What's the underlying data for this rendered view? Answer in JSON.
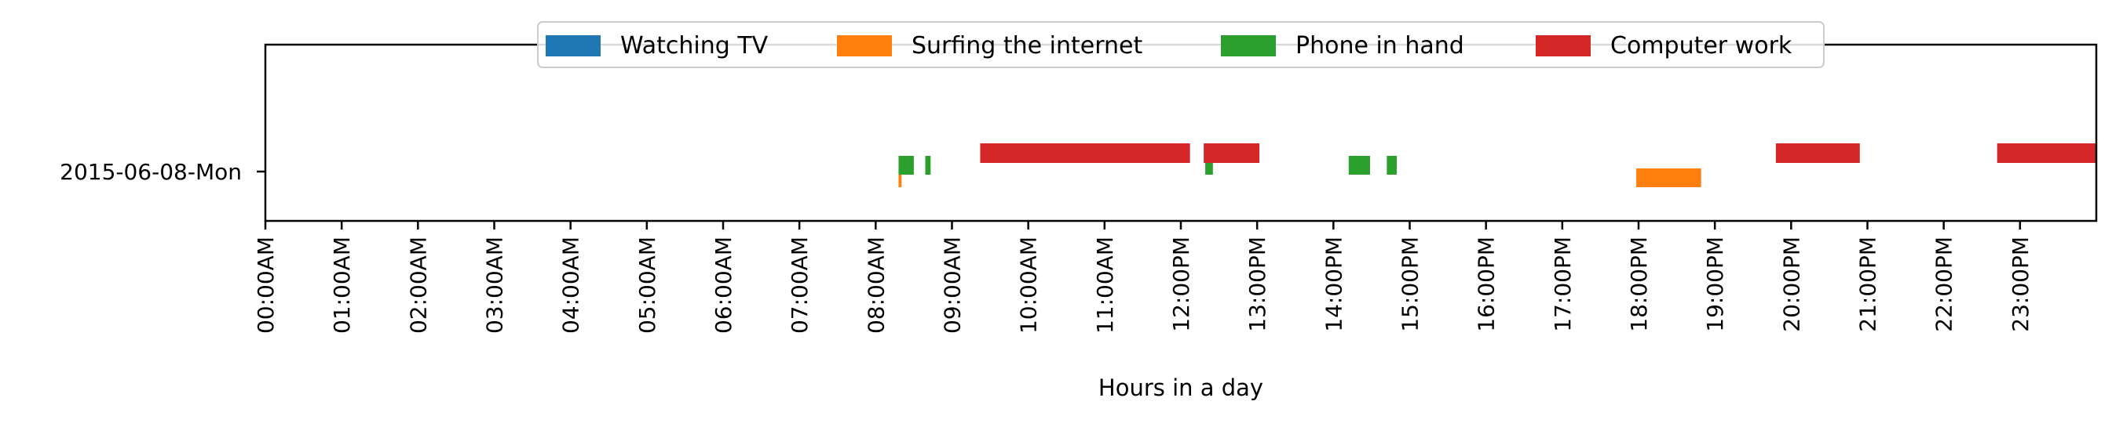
{
  "chart_data": {
    "type": "timeline",
    "title": "",
    "xlabel": "Hours in a day",
    "ylabel": "",
    "xlim": [
      0,
      24
    ],
    "x_ticks": [
      "00:00AM",
      "01:00AM",
      "02:00AM",
      "03:00AM",
      "04:00AM",
      "05:00AM",
      "06:00AM",
      "07:00AM",
      "08:00AM",
      "09:00AM",
      "10:00AM",
      "11:00AM",
      "12:00PM",
      "13:00PM",
      "14:00PM",
      "15:00PM",
      "16:00PM",
      "17:00PM",
      "18:00PM",
      "19:00PM",
      "20:00PM",
      "21:00PM",
      "22:00PM",
      "23:00PM"
    ],
    "y_categories": [
      "2015-06-08-Mon"
    ],
    "legend_position": "top-center",
    "grid": false,
    "series": [
      {
        "name": "Watching TV",
        "color": "#1f77b4",
        "intervals": []
      },
      {
        "name": "Surfing the internet",
        "color": "#ff7f0e",
        "intervals": [
          [
            8.3,
            8.34
          ],
          [
            17.97,
            18.82
          ]
        ]
      },
      {
        "name": "Phone in hand",
        "color": "#2ca02c",
        "intervals": [
          [
            8.3,
            8.5
          ],
          [
            8.65,
            8.72
          ],
          [
            12.32,
            12.42
          ],
          [
            14.2,
            14.48
          ],
          [
            14.7,
            14.83
          ]
        ]
      },
      {
        "name": "Computer work",
        "color": "#d62728",
        "intervals": [
          [
            9.37,
            12.12
          ],
          [
            12.3,
            13.03
          ],
          [
            19.8,
            20.9
          ],
          [
            22.7,
            24.0
          ]
        ]
      }
    ]
  }
}
